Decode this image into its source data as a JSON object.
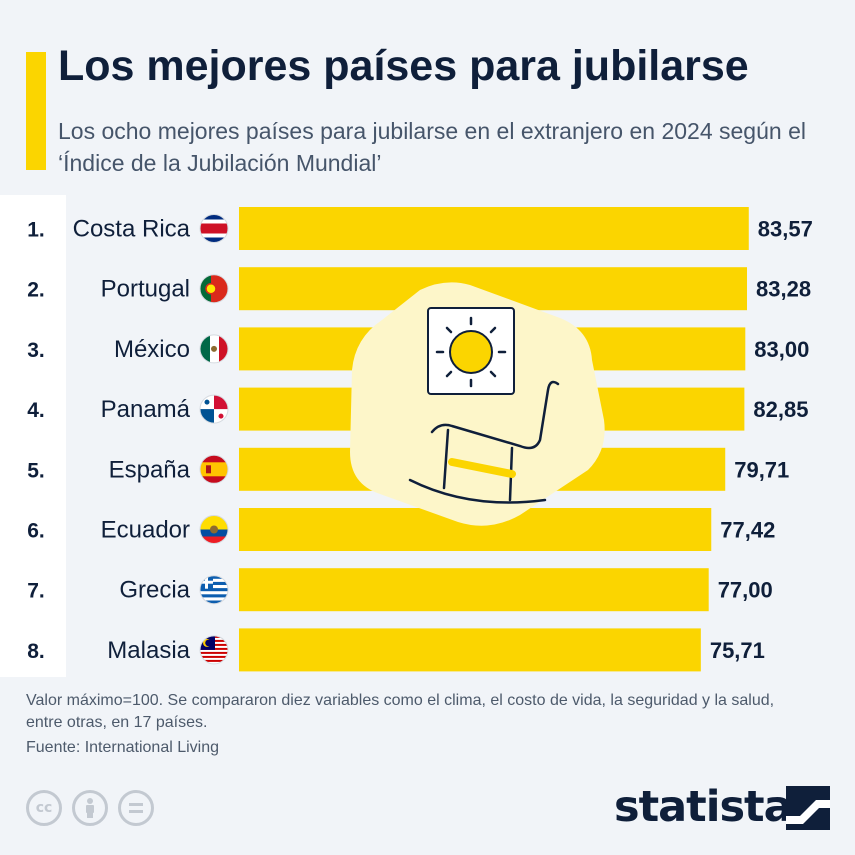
{
  "title": "Los mejores países para jubilarse",
  "subtitle": "Los ocho mejores países para jubilarse en el extranjero en 2024 según el ‘Índice de la Jubilación Mundial’",
  "notes": "Valor máximo=100. Se compararon diez variables como el clima, el costo de vida, la seguridad y la salud, entre otras, en 17 países.",
  "source": "Fuente: International Living",
  "brand": "statista",
  "colors": {
    "accent": "#fbd500",
    "text": "#0f1f3a",
    "background": "#f1f4f8"
  },
  "icons": [
    "creative-commons-icon",
    "attribution-icon",
    "no-derivatives-icon",
    "sun-icon",
    "rocking-chair-icon"
  ],
  "chart_data": {
    "type": "bar",
    "orientation": "horizontal",
    "ranks": [
      "1.",
      "2.",
      "3.",
      "4.",
      "5.",
      "6.",
      "7.",
      "8."
    ],
    "categories": [
      "Costa Rica",
      "Portugal",
      "México",
      "Panamá",
      "España",
      "Ecuador",
      "Grecia",
      "Malasia"
    ],
    "values": [
      83.57,
      83.28,
      83.0,
      82.85,
      79.71,
      77.42,
      77.0,
      75.71
    ],
    "value_labels": [
      "83,57",
      "83,28",
      "83,00",
      "82,85",
      "79,71",
      "77,42",
      "77,00",
      "75,71"
    ],
    "flags": [
      "costa-rica-flag-icon",
      "portugal-flag-icon",
      "mexico-flag-icon",
      "panama-flag-icon",
      "spain-flag-icon",
      "ecuador-flag-icon",
      "greece-flag-icon",
      "malaysia-flag-icon"
    ],
    "xlim": [
      0,
      100
    ],
    "bar_color": "#fbd500",
    "grid": false,
    "legend": "none"
  }
}
